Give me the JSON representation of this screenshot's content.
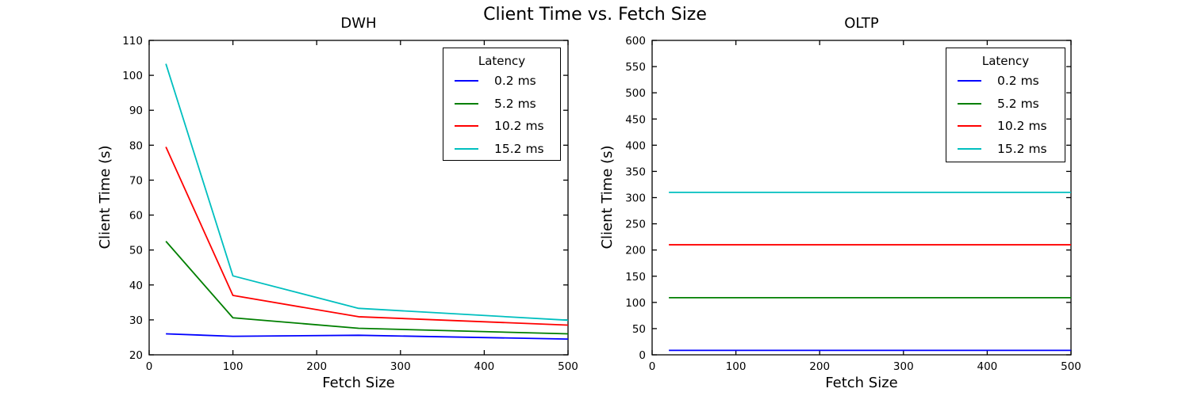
{
  "figure": {
    "title": "Client Time vs. Fetch Size",
    "background": "#ffffff",
    "text_color": "#000000",
    "axis_color": "#000000"
  },
  "legend": {
    "title": "Latency",
    "position": "upper right",
    "items": [
      {
        "label": "0.2 ms",
        "color": "#0000ff"
      },
      {
        "label": "5.2 ms",
        "color": "#007f00"
      },
      {
        "label": "10.2 ms",
        "color": "#ff0000"
      },
      {
        "label": "15.2 ms",
        "color": "#00bfbf"
      }
    ]
  },
  "chart_data": [
    {
      "type": "line",
      "title": "DWH",
      "xlabel": "Fetch Size",
      "ylabel": "Client Time (s)",
      "x": [
        20,
        100,
        250,
        500
      ],
      "series": [
        {
          "name": "0.2 ms",
          "color": "#0000ff",
          "values": [
            26.0,
            25.3,
            25.6,
            24.5
          ]
        },
        {
          "name": "5.2 ms",
          "color": "#007f00",
          "values": [
            52.5,
            30.6,
            27.6,
            26.0
          ]
        },
        {
          "name": "10.2 ms",
          "color": "#ff0000",
          "values": [
            79.5,
            37.0,
            30.9,
            28.5
          ]
        },
        {
          "name": "15.2 ms",
          "color": "#00bfbf",
          "values": [
            103.3,
            42.6,
            33.3,
            29.9
          ]
        }
      ],
      "xlim": [
        0,
        500
      ],
      "ylim": [
        20,
        110
      ],
      "xticks": [
        0,
        100,
        200,
        300,
        400,
        500
      ],
      "yticks": [
        20,
        30,
        40,
        50,
        60,
        70,
        80,
        90,
        100,
        110
      ],
      "grid": false,
      "legend_position": "upper right"
    },
    {
      "type": "line",
      "title": "OLTP",
      "xlabel": "Fetch Size",
      "ylabel": "Client Time (s)",
      "x": [
        20,
        100,
        250,
        500
      ],
      "series": [
        {
          "name": "0.2 ms",
          "color": "#0000ff",
          "values": [
            8.5,
            8.5,
            8.5,
            8.5
          ]
        },
        {
          "name": "5.2 ms",
          "color": "#007f00",
          "values": [
            109,
            109,
            109,
            109
          ]
        },
        {
          "name": "10.2 ms",
          "color": "#ff0000",
          "values": [
            210,
            210,
            210,
            210
          ]
        },
        {
          "name": "15.2 ms",
          "color": "#00bfbf",
          "values": [
            310,
            310,
            310,
            310
          ]
        }
      ],
      "xlim": [
        0,
        500
      ],
      "ylim": [
        0,
        600
      ],
      "xticks": [
        0,
        100,
        200,
        300,
        400,
        500
      ],
      "yticks": [
        0,
        50,
        100,
        150,
        200,
        250,
        300,
        350,
        400,
        450,
        500,
        550,
        600
      ],
      "grid": false,
      "legend_position": "upper right"
    }
  ]
}
